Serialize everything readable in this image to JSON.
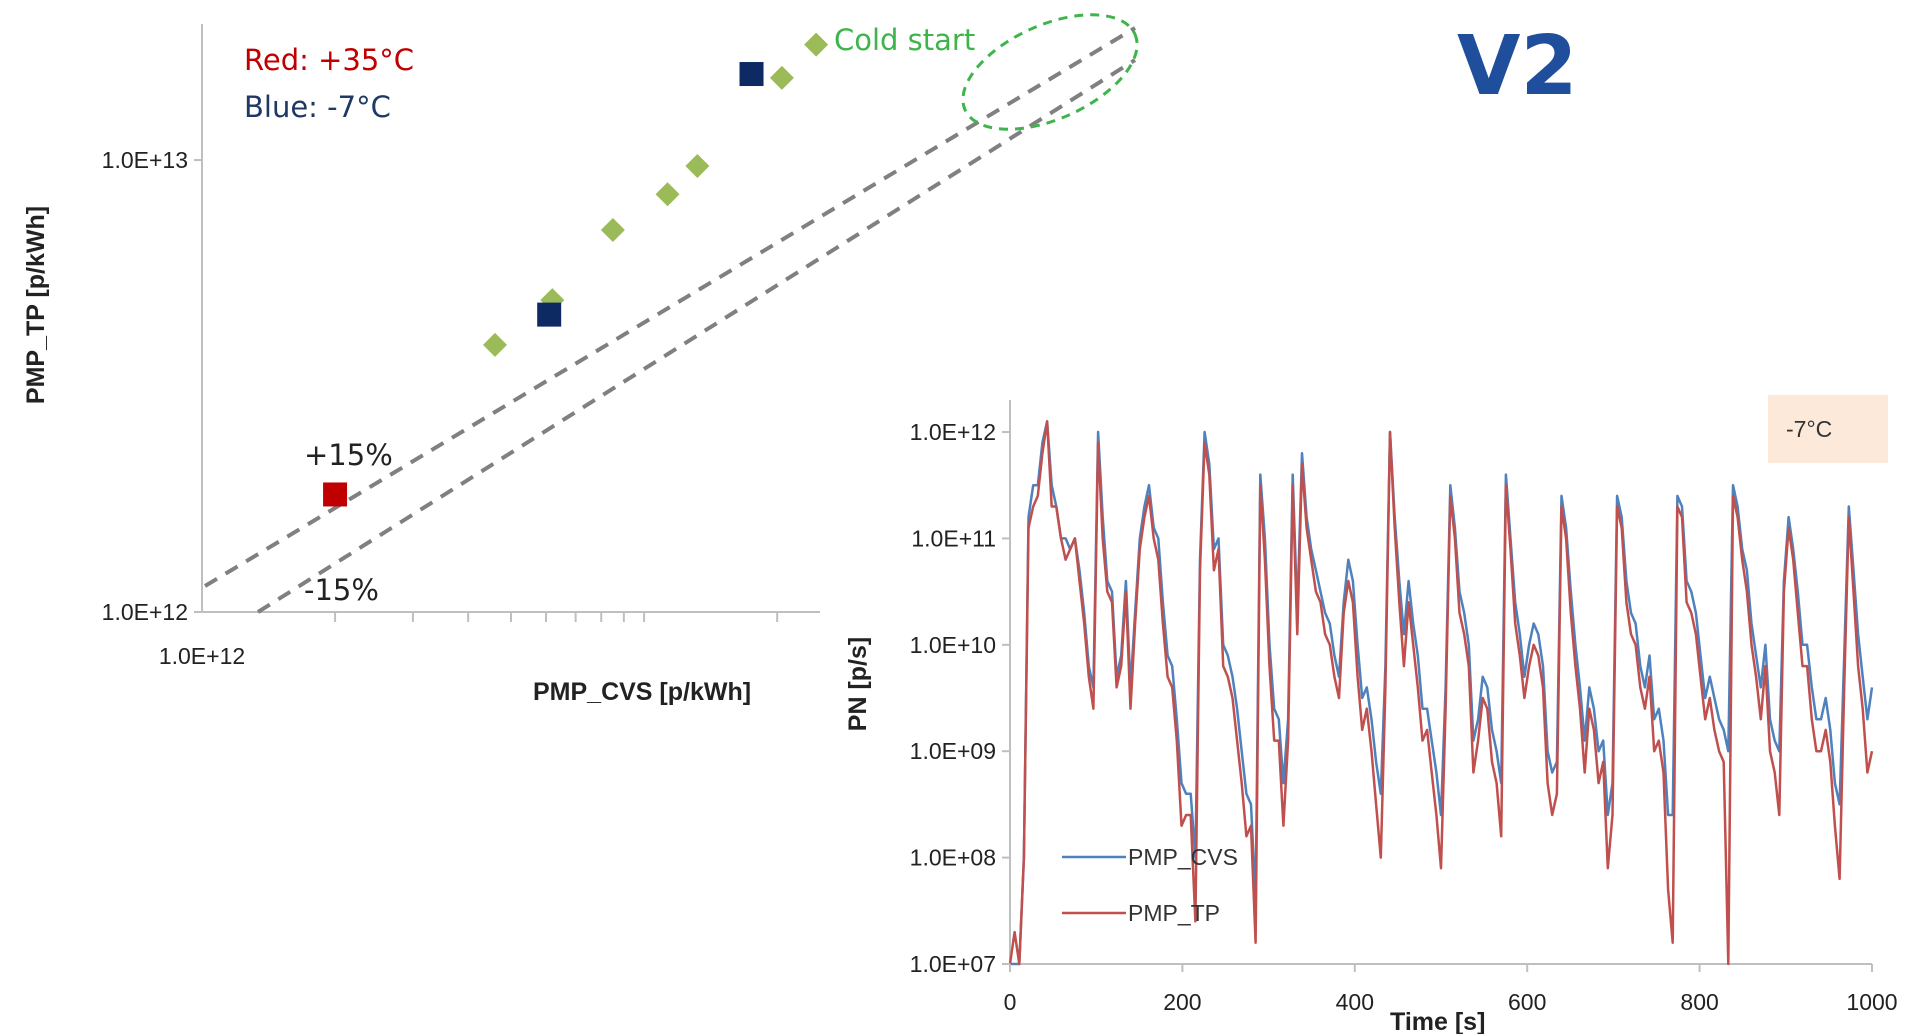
{
  "colors": {
    "red_note": "#c00000",
    "blue_note": "#1f3864",
    "green_note": "#3db54a",
    "diamond": "#9bbb59",
    "square_blue": "#0d2a63",
    "square_red": "#c00000",
    "band": "#808080",
    "series_cvs": "#4f81bd",
    "series_tp": "#c0504d",
    "temp_box": "#fde9d9",
    "v2": "#1f4e9c"
  },
  "label_v2": "V2",
  "chart_data": [
    {
      "type": "scatter",
      "title": "",
      "xlabel": "PMP_CVS [p/kWh]",
      "ylabel": "PMP_TP [p/kWh]",
      "scale": "log",
      "xlim": [
        1000000000000.0,
        25000000000000.0
      ],
      "ylim": [
        1000000000000.0,
        20000000000000.0
      ],
      "x_tick_labels": [
        "1.0E+12"
      ],
      "y_tick_labels": [
        "1.0E+12",
        "1.0E+13"
      ],
      "y_ticks": [
        1000000000000.0,
        10000000000000.0
      ],
      "notes": {
        "red": "Red: +35°C",
        "blue": "Blue: -7°C",
        "cold_start": "Cold start",
        "plus15": "+15%",
        "minus15": "-15%"
      },
      "bands": [
        {
          "label": "+15%",
          "factor": 1.15
        },
        {
          "label": "-15%",
          "factor": 0.85
        }
      ],
      "series": [
        {
          "marker": "diamond",
          "points": [
            [
              4600000000000.0,
              3900000000000.0
            ],
            [
              6200000000000.0,
              4900000000000.0
            ],
            [
              8500000000000.0,
              7000000000000.0
            ],
            [
              11300000000000.0,
              8400000000000.0
            ],
            [
              13200000000000.0,
              9700000000000.0
            ],
            [
              20500000000000.0,
              15200000000000.0
            ],
            [
              24500000000000.0,
              18000000000000.0
            ]
          ]
        },
        {
          "marker": "square",
          "color_key": "square_blue",
          "points": [
            [
              6100000000000.0,
              4550000000000.0
            ],
            [
              17500000000000.0,
              15500000000000.0
            ]
          ]
        },
        {
          "marker": "square",
          "color_key": "square_red",
          "points": [
            [
              2000000000000.0,
              1820000000000.0
            ]
          ]
        }
      ]
    },
    {
      "type": "line",
      "title": "",
      "xlabel": "Time [s]",
      "ylabel": "PN [p/s]",
      "scale_y": "log",
      "xlim": [
        0,
        1000
      ],
      "ylim": [
        10000000.0,
        2000000000000.0
      ],
      "x_ticks": [
        0,
        200,
        400,
        600,
        800,
        1000
      ],
      "y_ticks": [
        10000000.0,
        100000000.0,
        1000000000.0,
        10000000000.0,
        100000000000.0,
        1000000000000.0
      ],
      "y_tick_labels": [
        "1.0E+07",
        "1.0E+08",
        "1.0E+09",
        "1.0E+10",
        "1.0E+11",
        "1.0E+12"
      ],
      "annotation": "-7°C",
      "series": [
        {
          "name": "PMP_CVS",
          "color_key": "series_cvs",
          "log10_values": [
            7.0,
            7.0,
            7.0,
            8.0,
            11.2,
            11.5,
            11.5,
            11.9,
            12.1,
            11.5,
            11.3,
            11.0,
            11.0,
            10.9,
            11.0,
            10.7,
            10.3,
            9.8,
            9.6,
            12.0,
            11.2,
            10.6,
            10.5,
            9.7,
            9.9,
            10.6,
            9.6,
            10.3,
            11.0,
            11.3,
            11.5,
            11.1,
            11.0,
            10.4,
            9.9,
            9.8,
            9.3,
            8.7,
            8.6,
            8.6,
            8.0,
            10.8,
            12.0,
            11.7,
            10.9,
            11.0,
            10.0,
            9.9,
            9.7,
            9.4,
            9.0,
            8.6,
            8.5,
            7.6,
            11.6,
            11.0,
            10.0,
            9.4,
            9.3,
            8.7,
            9.3,
            11.6,
            10.3,
            11.8,
            11.2,
            10.9,
            10.7,
            10.5,
            10.3,
            10.2,
            9.9,
            9.7,
            10.4,
            10.8,
            10.6,
            10.0,
            9.5,
            9.6,
            9.3,
            8.9,
            8.6,
            9.8,
            12.0,
            11.2,
            10.6,
            10.1,
            10.6,
            10.2,
            9.9,
            9.4,
            9.4,
            9.1,
            8.8,
            8.4,
            9.6,
            11.5,
            11.1,
            10.5,
            10.3,
            10.0,
            9.1,
            9.3,
            9.7,
            9.6,
            9.2,
            9.0,
            8.7,
            11.6,
            11.0,
            10.4,
            10.1,
            9.7,
            10.0,
            10.2,
            10.1,
            9.8,
            9.0,
            8.8,
            8.9,
            11.4,
            11.1,
            10.5,
            10.0,
            9.6,
            9.1,
            9.6,
            9.4,
            9.0,
            9.1,
            8.4,
            8.7,
            11.4,
            11.2,
            10.6,
            10.3,
            10.2,
            9.8,
            9.6,
            9.9,
            9.3,
            9.4,
            9.1,
            8.4,
            8.4,
            11.4,
            11.3,
            10.6,
            10.5,
            10.3,
            9.9,
            9.5,
            9.7,
            9.5,
            9.3,
            9.2,
            9.0,
            11.5,
            11.3,
            10.9,
            10.7,
            10.2,
            9.9,
            9.6,
            10.0,
            9.3,
            9.1,
            9.0,
            10.6,
            11.2,
            10.9,
            10.5,
            10.0,
            10.0,
            9.6,
            9.3,
            9.3,
            9.5,
            9.2,
            8.7,
            8.5,
            9.9,
            11.3,
            10.7,
            10.1,
            9.7,
            9.3,
            9.6
          ]
        },
        {
          "name": "PMP_TP",
          "color_key": "series_tp",
          "log10_values": [
            7.0,
            7.3,
            7.0,
            8.0,
            11.1,
            11.3,
            11.4,
            11.8,
            12.1,
            11.3,
            11.3,
            11.0,
            10.8,
            10.9,
            11.0,
            10.6,
            10.2,
            9.7,
            9.4,
            11.9,
            11.0,
            10.5,
            10.4,
            9.6,
            9.8,
            10.5,
            9.4,
            10.2,
            10.9,
            11.2,
            11.4,
            11.0,
            10.8,
            10.2,
            9.7,
            9.6,
            9.1,
            8.3,
            8.4,
            8.4,
            7.4,
            10.7,
            11.9,
            11.6,
            10.7,
            10.9,
            9.8,
            9.7,
            9.5,
            9.1,
            8.7,
            8.2,
            8.3,
            7.2,
            11.5,
            10.8,
            9.8,
            9.1,
            9.1,
            8.3,
            9.1,
            11.5,
            10.1,
            11.7,
            11.1,
            10.8,
            10.5,
            10.4,
            10.1,
            10.0,
            9.7,
            9.5,
            10.3,
            10.6,
            10.4,
            9.7,
            9.2,
            9.4,
            9.0,
            8.5,
            8.0,
            9.6,
            12.0,
            11.1,
            10.4,
            9.8,
            10.4,
            10.0,
            9.6,
            9.1,
            9.2,
            8.8,
            8.4,
            7.9,
            9.4,
            11.4,
            11.0,
            10.3,
            10.1,
            9.8,
            8.8,
            9.1,
            9.5,
            9.4,
            8.9,
            8.7,
            8.2,
            11.5,
            10.9,
            10.2,
            9.9,
            9.5,
            9.8,
            10.0,
            9.9,
            9.6,
            8.7,
            8.4,
            8.6,
            11.3,
            11.0,
            10.3,
            9.8,
            9.4,
            8.8,
            9.4,
            9.2,
            8.7,
            8.9,
            7.9,
            8.4,
            11.3,
            11.1,
            10.4,
            10.1,
            10.0,
            9.6,
            9.4,
            9.7,
            9.0,
            9.1,
            8.8,
            7.7,
            7.2,
            11.3,
            11.2,
            10.4,
            10.3,
            10.1,
            9.7,
            9.3,
            9.5,
            9.2,
            9.0,
            8.9,
            7.0,
            11.4,
            11.2,
            10.8,
            10.5,
            10.0,
            9.7,
            9.3,
            9.8,
            9.0,
            8.8,
            8.4,
            10.5,
            11.1,
            10.8,
            10.3,
            9.8,
            9.8,
            9.3,
            9.0,
            9.0,
            9.2,
            8.9,
            8.3,
            7.8,
            9.6,
            11.2,
            10.5,
            9.8,
            9.4,
            8.8,
            9.0
          ]
        }
      ],
      "legend_placement": "bottom-left"
    }
  ]
}
